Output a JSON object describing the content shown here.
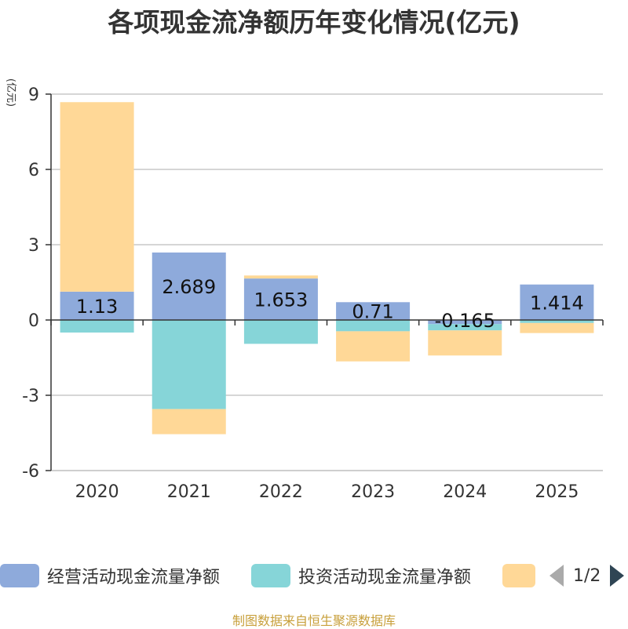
{
  "chart_data": {
    "type": "bar",
    "stacked": true,
    "title": "各项现金流净额历年变化情况(亿元)",
    "ylabel": "(亿元)",
    "xlabel": "",
    "categories": [
      "2020",
      "2021",
      "2022",
      "2023",
      "2024",
      "2025"
    ],
    "ylim": [
      -6,
      9
    ],
    "yticks": [
      -6,
      -3,
      0,
      3,
      6,
      9
    ],
    "grid": true,
    "series": [
      {
        "name": "经营活动现金流量净额",
        "color": "#8eaadb",
        "values": [
          1.13,
          2.689,
          1.653,
          0.71,
          -0.165,
          1.414
        ],
        "labels": [
          "1.13",
          "2.689",
          "1.653",
          "0.71",
          "-0.165",
          "1.414"
        ]
      },
      {
        "name": "投资活动现金流量净额",
        "color": "#86d5d8",
        "values": [
          -0.5,
          -3.55,
          -0.95,
          -0.45,
          -0.25,
          -0.12
        ]
      },
      {
        "name": "",
        "color": "#ffd897",
        "values": [
          7.55,
          -1.0,
          0.12,
          -1.2,
          -1.0,
          -0.4
        ]
      }
    ],
    "legend": {
      "position": "bottom",
      "page": "1/2"
    }
  },
  "source": "制图数据来自恒生聚源数据库"
}
